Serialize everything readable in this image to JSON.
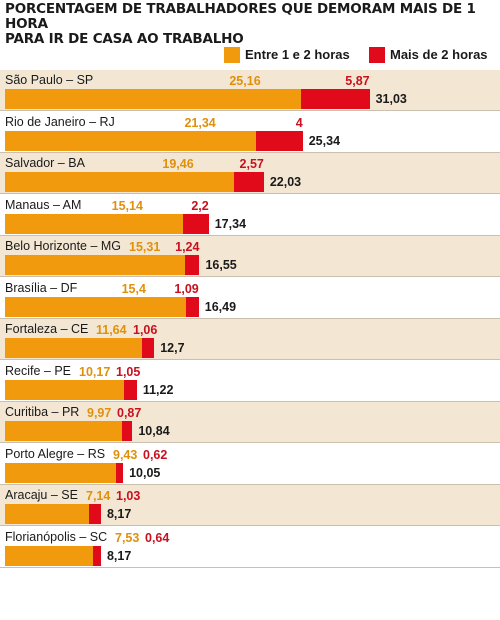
{
  "chart_data": {
    "type": "bar",
    "stacked": true,
    "orientation": "horizontal",
    "title_lines": [
      "PORCENTAGEM DE TRABALHADORES QUE DEMORAM MAIS DE 1 HORA",
      "PARA IR DE CASA AO TRABALHO"
    ],
    "legend_position": "top-right",
    "categories": [
      "São Paulo – SP",
      "Rio de Janeiro – RJ",
      "Salvador – BA",
      "Manaus – AM",
      "Belo Horizonte – MG",
      "Brasília – DF",
      "Fortaleza – CE",
      "Recife – PE",
      "Curitiba – PR",
      "Porto Alegre – RS",
      "Aracaju – SE",
      "Florianópolis – SC"
    ],
    "series": [
      {
        "name": "Entre 1 e 2 horas",
        "color": "#f29a0e",
        "values": [
          25.16,
          21.34,
          19.46,
          15.14,
          15.31,
          15.4,
          11.64,
          10.17,
          9.97,
          9.43,
          7.14,
          7.53
        ],
        "labels": [
          "25,16",
          "21,34",
          "19,46",
          "15,14",
          "15,31",
          "15,4",
          "11,64",
          "10,17",
          "9,97",
          "9,43",
          "7,14",
          "7,53"
        ]
      },
      {
        "name": "Mais de 2 horas",
        "color": "#e00a1b",
        "values": [
          5.87,
          4,
          2.57,
          2.2,
          1.24,
          1.09,
          1.06,
          1.05,
          0.87,
          0.62,
          1.03,
          0.64
        ],
        "labels": [
          "5,87",
          "4",
          "2,57",
          "2,2",
          "1,24",
          "1,09",
          "1,06",
          "1,05",
          "0,87",
          "0,62",
          "1,03",
          "0,64"
        ]
      }
    ],
    "totals": [
      31.03,
      25.34,
      22.03,
      17.34,
      16.55,
      16.49,
      12.7,
      11.22,
      10.84,
      10.05,
      8.17,
      8.17
    ],
    "total_labels": [
      "31,03",
      "25,34",
      "22,03",
      "17,34",
      "16,55",
      "16,49",
      "12,7",
      "11,22",
      "10,84",
      "10,05",
      "8,17",
      "8,17"
    ],
    "xlim": [
      0,
      31.03
    ]
  }
}
